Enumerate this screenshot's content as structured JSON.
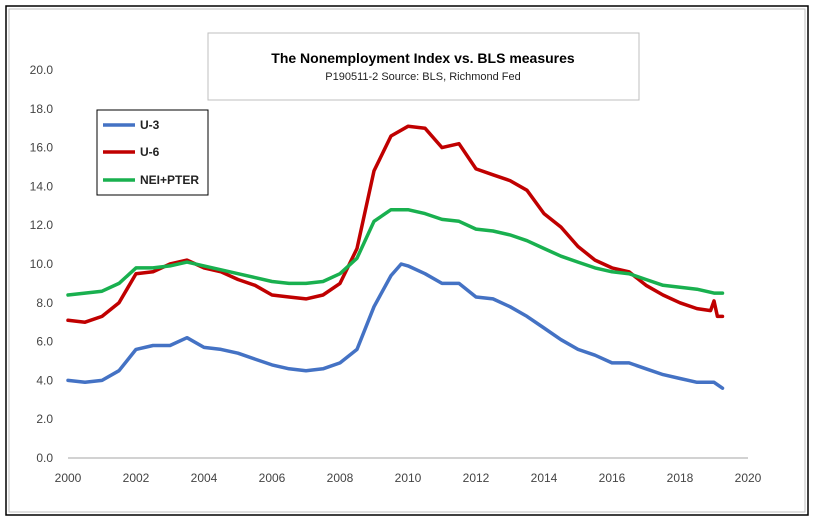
{
  "chart_data": {
    "type": "line",
    "title": "The Nonemployment Index vs. BLS measures",
    "subtitle": "P190511-2 Source: BLS, Richmond Fed",
    "xlabel": "",
    "ylabel": "",
    "xlim": [
      2000,
      2020
    ],
    "ylim": [
      0,
      20
    ],
    "xticks": [
      "2000",
      "2002",
      "2004",
      "2006",
      "2008",
      "2010",
      "2012",
      "2014",
      "2016",
      "2018",
      "2020"
    ],
    "yticks": [
      "0.0",
      "2.0",
      "4.0",
      "6.0",
      "8.0",
      "10.0",
      "12.0",
      "14.0",
      "16.0",
      "18.0",
      "20.0"
    ],
    "grid": false,
    "legend": "top-left",
    "series": [
      {
        "name": "U-3",
        "color": "#4472c4",
        "points": [
          [
            2000.0,
            4.0
          ],
          [
            2000.5,
            3.9
          ],
          [
            2001.0,
            4.0
          ],
          [
            2001.5,
            4.5
          ],
          [
            2002.0,
            5.6
          ],
          [
            2002.5,
            5.8
          ],
          [
            2003.0,
            5.8
          ],
          [
            2003.5,
            6.2
          ],
          [
            2004.0,
            5.7
          ],
          [
            2004.5,
            5.6
          ],
          [
            2005.0,
            5.4
          ],
          [
            2005.5,
            5.1
          ],
          [
            2006.0,
            4.8
          ],
          [
            2006.5,
            4.6
          ],
          [
            2007.0,
            4.5
          ],
          [
            2007.5,
            4.6
          ],
          [
            2008.0,
            4.9
          ],
          [
            2008.5,
            5.6
          ],
          [
            2009.0,
            7.8
          ],
          [
            2009.5,
            9.4
          ],
          [
            2009.8,
            10.0
          ],
          [
            2010.0,
            9.9
          ],
          [
            2010.5,
            9.5
          ],
          [
            2011.0,
            9.0
          ],
          [
            2011.5,
            9.0
          ],
          [
            2012.0,
            8.3
          ],
          [
            2012.5,
            8.2
          ],
          [
            2013.0,
            7.8
          ],
          [
            2013.5,
            7.3
          ],
          [
            2014.0,
            6.7
          ],
          [
            2014.5,
            6.1
          ],
          [
            2015.0,
            5.6
          ],
          [
            2015.5,
            5.3
          ],
          [
            2016.0,
            4.9
          ],
          [
            2016.5,
            4.9
          ],
          [
            2017.0,
            4.6
          ],
          [
            2017.5,
            4.3
          ],
          [
            2018.0,
            4.1
          ],
          [
            2018.5,
            3.9
          ],
          [
            2019.0,
            3.9
          ],
          [
            2019.25,
            3.6
          ]
        ]
      },
      {
        "name": "U-6",
        "color": "#c00000",
        "points": [
          [
            2000.0,
            7.1
          ],
          [
            2000.5,
            7.0
          ],
          [
            2001.0,
            7.3
          ],
          [
            2001.5,
            8.0
          ],
          [
            2002.0,
            9.5
          ],
          [
            2002.5,
            9.6
          ],
          [
            2003.0,
            10.0
          ],
          [
            2003.5,
            10.2
          ],
          [
            2004.0,
            9.8
          ],
          [
            2004.5,
            9.6
          ],
          [
            2005.0,
            9.2
          ],
          [
            2005.5,
            8.9
          ],
          [
            2006.0,
            8.4
          ],
          [
            2006.5,
            8.3
          ],
          [
            2007.0,
            8.2
          ],
          [
            2007.5,
            8.4
          ],
          [
            2008.0,
            9.0
          ],
          [
            2008.5,
            10.8
          ],
          [
            2009.0,
            14.8
          ],
          [
            2009.5,
            16.6
          ],
          [
            2010.0,
            17.1
          ],
          [
            2010.5,
            17.0
          ],
          [
            2011.0,
            16.0
          ],
          [
            2011.5,
            16.2
          ],
          [
            2012.0,
            14.9
          ],
          [
            2012.5,
            14.6
          ],
          [
            2013.0,
            14.3
          ],
          [
            2013.5,
            13.8
          ],
          [
            2014.0,
            12.6
          ],
          [
            2014.5,
            11.9
          ],
          [
            2015.0,
            10.9
          ],
          [
            2015.5,
            10.2
          ],
          [
            2016.0,
            9.8
          ],
          [
            2016.5,
            9.6
          ],
          [
            2017.0,
            8.9
          ],
          [
            2017.5,
            8.4
          ],
          [
            2018.0,
            8.0
          ],
          [
            2018.5,
            7.7
          ],
          [
            2018.9,
            7.6
          ],
          [
            2019.0,
            8.1
          ],
          [
            2019.1,
            7.3
          ],
          [
            2019.25,
            7.3
          ]
        ]
      },
      {
        "name": "NEI+PTER",
        "color": "#19b04f",
        "points": [
          [
            2000.0,
            8.4
          ],
          [
            2000.5,
            8.5
          ],
          [
            2001.0,
            8.6
          ],
          [
            2001.5,
            9.0
          ],
          [
            2002.0,
            9.8
          ],
          [
            2002.5,
            9.8
          ],
          [
            2003.0,
            9.9
          ],
          [
            2003.5,
            10.1
          ],
          [
            2004.0,
            9.9
          ],
          [
            2004.5,
            9.7
          ],
          [
            2005.0,
            9.5
          ],
          [
            2005.5,
            9.3
          ],
          [
            2006.0,
            9.1
          ],
          [
            2006.5,
            9.0
          ],
          [
            2007.0,
            9.0
          ],
          [
            2007.5,
            9.1
          ],
          [
            2008.0,
            9.5
          ],
          [
            2008.5,
            10.3
          ],
          [
            2009.0,
            12.2
          ],
          [
            2009.5,
            12.8
          ],
          [
            2010.0,
            12.8
          ],
          [
            2010.5,
            12.6
          ],
          [
            2011.0,
            12.3
          ],
          [
            2011.5,
            12.2
          ],
          [
            2012.0,
            11.8
          ],
          [
            2012.5,
            11.7
          ],
          [
            2013.0,
            11.5
          ],
          [
            2013.5,
            11.2
          ],
          [
            2014.0,
            10.8
          ],
          [
            2014.5,
            10.4
          ],
          [
            2015.0,
            10.1
          ],
          [
            2015.5,
            9.8
          ],
          [
            2016.0,
            9.6
          ],
          [
            2016.5,
            9.5
          ],
          [
            2017.0,
            9.2
          ],
          [
            2017.5,
            8.9
          ],
          [
            2018.0,
            8.8
          ],
          [
            2018.5,
            8.7
          ],
          [
            2019.0,
            8.5
          ],
          [
            2019.25,
            8.5
          ]
        ]
      }
    ]
  }
}
